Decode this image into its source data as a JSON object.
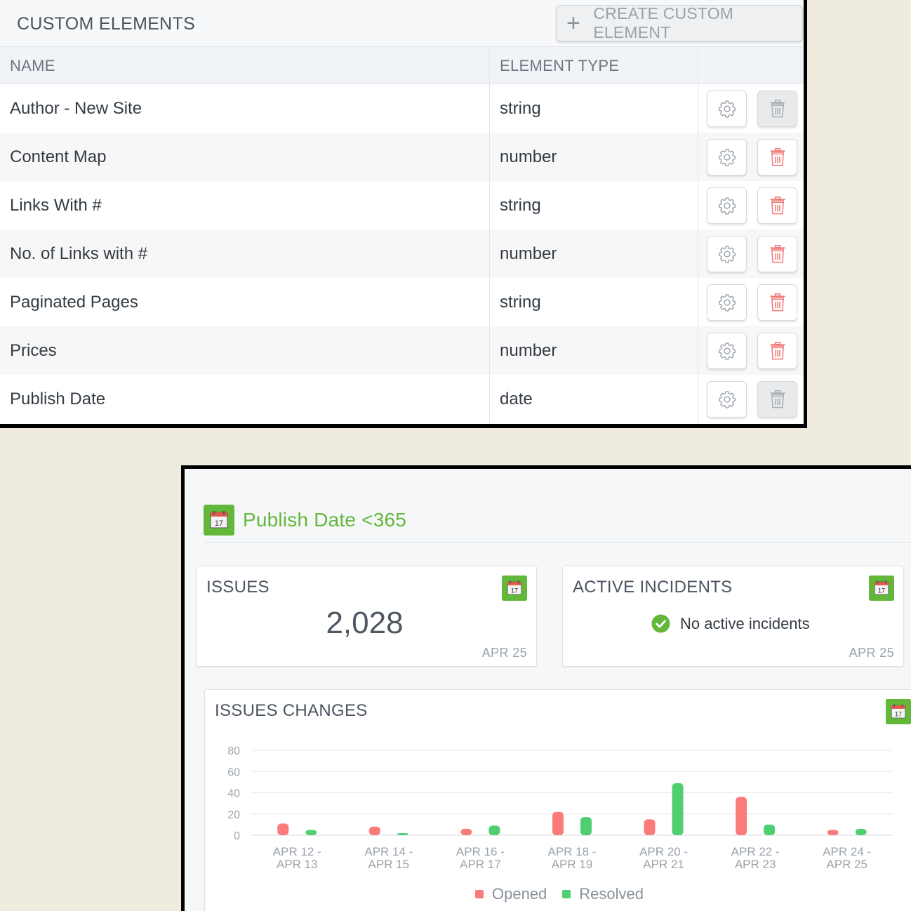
{
  "custom_elements": {
    "title": "CUSTOM ELEMENTS",
    "create_button": "CREATE CUSTOM ELEMENT",
    "columns": {
      "name": "NAME",
      "type": "ELEMENT TYPE"
    },
    "rows": [
      {
        "name": "Author - New Site",
        "type": "string",
        "delete_enabled": false
      },
      {
        "name": "Content Map",
        "type": "number",
        "delete_enabled": true
      },
      {
        "name": "Links With #",
        "type": "string",
        "delete_enabled": true
      },
      {
        "name": "No. of Links with #",
        "type": "number",
        "delete_enabled": true
      },
      {
        "name": "Paginated Pages",
        "type": "string",
        "delete_enabled": true
      },
      {
        "name": "Prices",
        "type": "number",
        "delete_enabled": true
      },
      {
        "name": "Publish Date",
        "type": "date",
        "delete_enabled": false
      }
    ]
  },
  "dashboard": {
    "title": "Publish Date <365",
    "calendar_day": "17",
    "issues": {
      "title": "ISSUES",
      "value": "2,028",
      "date": "APR 25"
    },
    "incidents": {
      "title": "ACTIVE INCIDENTS",
      "message": "No active incidents",
      "date": "APR 25"
    },
    "changes": {
      "title": "ISSUES CHANGES"
    }
  },
  "colors": {
    "accent_green": "#63b83a",
    "opened": "#fb7b7b",
    "resolved": "#4fcf72",
    "delete_red": "#f07a7a"
  },
  "chart_data": {
    "type": "bar",
    "title": "ISSUES CHANGES",
    "categories": [
      [
        "APR 12 -",
        "APR 13"
      ],
      [
        "APR 14 -",
        "APR 15"
      ],
      [
        "APR 16 -",
        "APR 17"
      ],
      [
        "APR 18 -",
        "APR 19"
      ],
      [
        "APR 20 -",
        "APR 21"
      ],
      [
        "APR 22 -",
        "APR 23"
      ],
      [
        "APR 24 -",
        "APR 25"
      ]
    ],
    "series": [
      {
        "name": "Opened",
        "color": "#fb7b7b",
        "values": [
          11,
          8,
          6,
          22,
          15,
          36,
          5
        ]
      },
      {
        "name": "Resolved",
        "color": "#4fcf72",
        "values": [
          5,
          2,
          9,
          17,
          49,
          10,
          6
        ]
      }
    ],
    "yticks": [
      0,
      20,
      40,
      60,
      80
    ],
    "ylim": [
      0,
      80
    ],
    "grid": true,
    "legend": "bottom"
  }
}
